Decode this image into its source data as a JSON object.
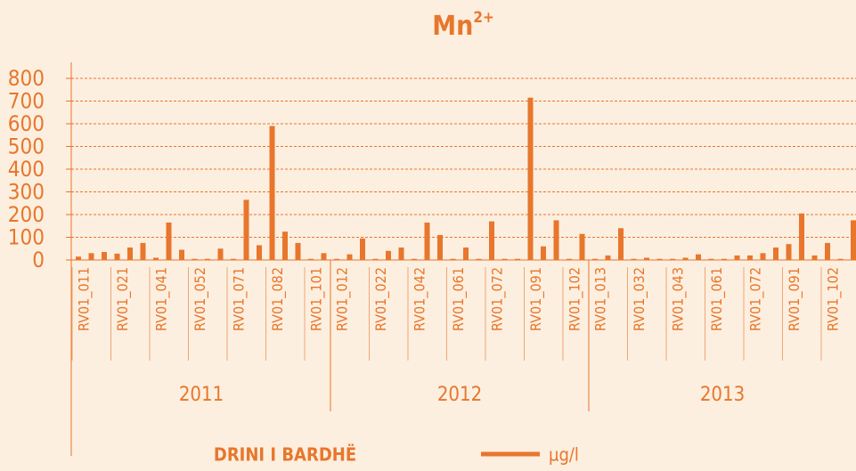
{
  "chart_data": {
    "type": "bar",
    "title": "Mn",
    "title_superscript": "2+",
    "categories": [
      "RV01_011",
      null,
      null,
      "RV01_021",
      null,
      null,
      "RV01_041",
      null,
      null,
      "RV01_052",
      null,
      null,
      "RV01_071",
      null,
      null,
      "RV01_082",
      null,
      null,
      "RV01_101",
      null,
      "RV01_012",
      null,
      null,
      "RV01_022",
      null,
      null,
      "RV01_042",
      null,
      null,
      "RV01_061",
      null,
      null,
      "RV01_072",
      null,
      null,
      "RV01_091",
      null,
      null,
      "RV01_102",
      null,
      "RV01_013",
      null,
      null,
      "RV01_032",
      null,
      null,
      "RV01_043",
      null,
      null,
      "RV01_061",
      null,
      null,
      "RV01_072",
      null,
      null,
      "RV01_091",
      null,
      null,
      "RV01_102",
      null,
      null
    ],
    "values": [
      15,
      30,
      35,
      28,
      55,
      75,
      10,
      165,
      45,
      5,
      5,
      50,
      5,
      265,
      65,
      590,
      125,
      75,
      5,
      30,
      5,
      25,
      95,
      5,
      40,
      55,
      5,
      165,
      110,
      5,
      55,
      5,
      170,
      5,
      5,
      715,
      60,
      175,
      5,
      115,
      5,
      20,
      140,
      5,
      10,
      5,
      5,
      10,
      25,
      5,
      5,
      20,
      20,
      30,
      55,
      70,
      205,
      20,
      75,
      5,
      175
    ],
    "groups": [
      {
        "name": "2011",
        "count": 20
      },
      {
        "name": "2012",
        "count": 20
      },
      {
        "name": "2013",
        "count": 21
      }
    ],
    "color": "#e8762c",
    "ylim": [
      0,
      800
    ],
    "yticks": [
      0,
      100,
      200,
      300,
      400,
      500,
      600,
      700,
      800
    ],
    "grid": true,
    "location_label": "DRINI I BARDHË",
    "legend": [
      {
        "name": "µg/l",
        "color": "#e8762c"
      }
    ]
  }
}
